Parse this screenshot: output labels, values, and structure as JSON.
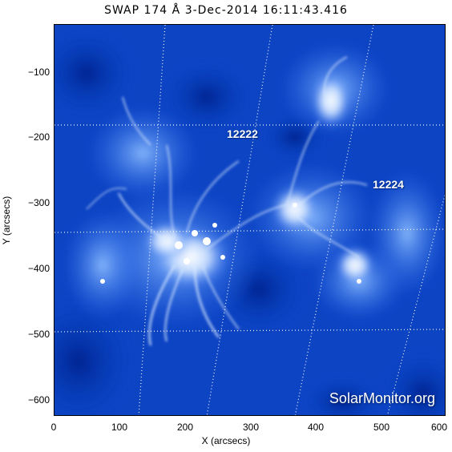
{
  "title": "SWAP 174 Å  3-Dec-2014 16:11:43.416",
  "axes": {
    "xlabel": "X (arcsecs)",
    "ylabel": "Y (arcsecs)",
    "xticks": [
      "0",
      "100",
      "200",
      "300",
      "400",
      "500",
      "600"
    ],
    "yticks": [
      "−100",
      "−200",
      "−300",
      "−400",
      "−500",
      "−600"
    ]
  },
  "regions": {
    "ar1": "12222",
    "ar2": "12224"
  },
  "watermark": "SolarMonitor.org",
  "colors": {
    "background": "#ffffff",
    "image_base": "#0a3fc0",
    "image_bright": "#ffffff",
    "grid": "#ffffff",
    "text": "#000000"
  }
}
